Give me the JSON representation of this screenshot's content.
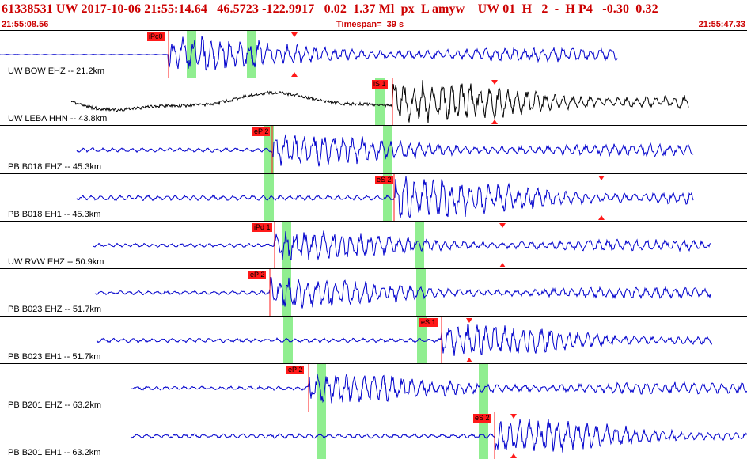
{
  "header": {
    "title": "61338531 UW 2017-10-06 21:55:14.64   46.5723 -122.9917   0.02  1.37 Ml  px  L amyw    UW 01  H   2  -  H P4   -0.30  0.32",
    "start_time": "21:55:08.56",
    "timespan": "Timespan=  39 s",
    "end_time": "21:55:47.33"
  },
  "colors": {
    "trace_blue": "#0000cc",
    "trace_black": "#000000",
    "pick_red": "#ff1a1a",
    "highlight_green": "#90ee90",
    "header_red": "#cc0000"
  },
  "icons": {
    "predicted_arrival": "red-triangle-marker-icon"
  },
  "channels": [
    {
      "label": "UW BOW EHZ -- 21.2km",
      "trace": "blue",
      "picks": [
        {
          "label": "iPc0"
        }
      ]
    },
    {
      "label": "UW LEBA HHN -- 43.8km",
      "trace": "black",
      "picks": [
        {
          "label": "iS 1"
        }
      ]
    },
    {
      "label": "PB B018 EHZ -- 45.3km",
      "trace": "blue",
      "picks": [
        {
          "label": "eP 2"
        }
      ]
    },
    {
      "label": "PB B018 EH1 -- 45.3km",
      "trace": "blue",
      "picks": [
        {
          "label": "eS 2"
        }
      ]
    },
    {
      "label": "UW RVW EHZ -- 50.9km",
      "trace": "blue",
      "picks": [
        {
          "label": "iPd 1"
        }
      ]
    },
    {
      "label": "PB B023 EHZ -- 51.7km",
      "trace": "blue",
      "picks": [
        {
          "label": "eP 2"
        }
      ]
    },
    {
      "label": "PB B023 EH1 -- 51.7km",
      "trace": "blue",
      "picks": [
        {
          "label": "eS 1"
        }
      ]
    },
    {
      "label": "PB B201 EHZ -- 63.2km",
      "trace": "blue",
      "picks": [
        {
          "label": "eP 2"
        }
      ]
    },
    {
      "label": "PB B201 EH1 -- 63.2km",
      "trace": "blue",
      "picks": [
        {
          "label": "eS 2"
        }
      ]
    }
  ]
}
